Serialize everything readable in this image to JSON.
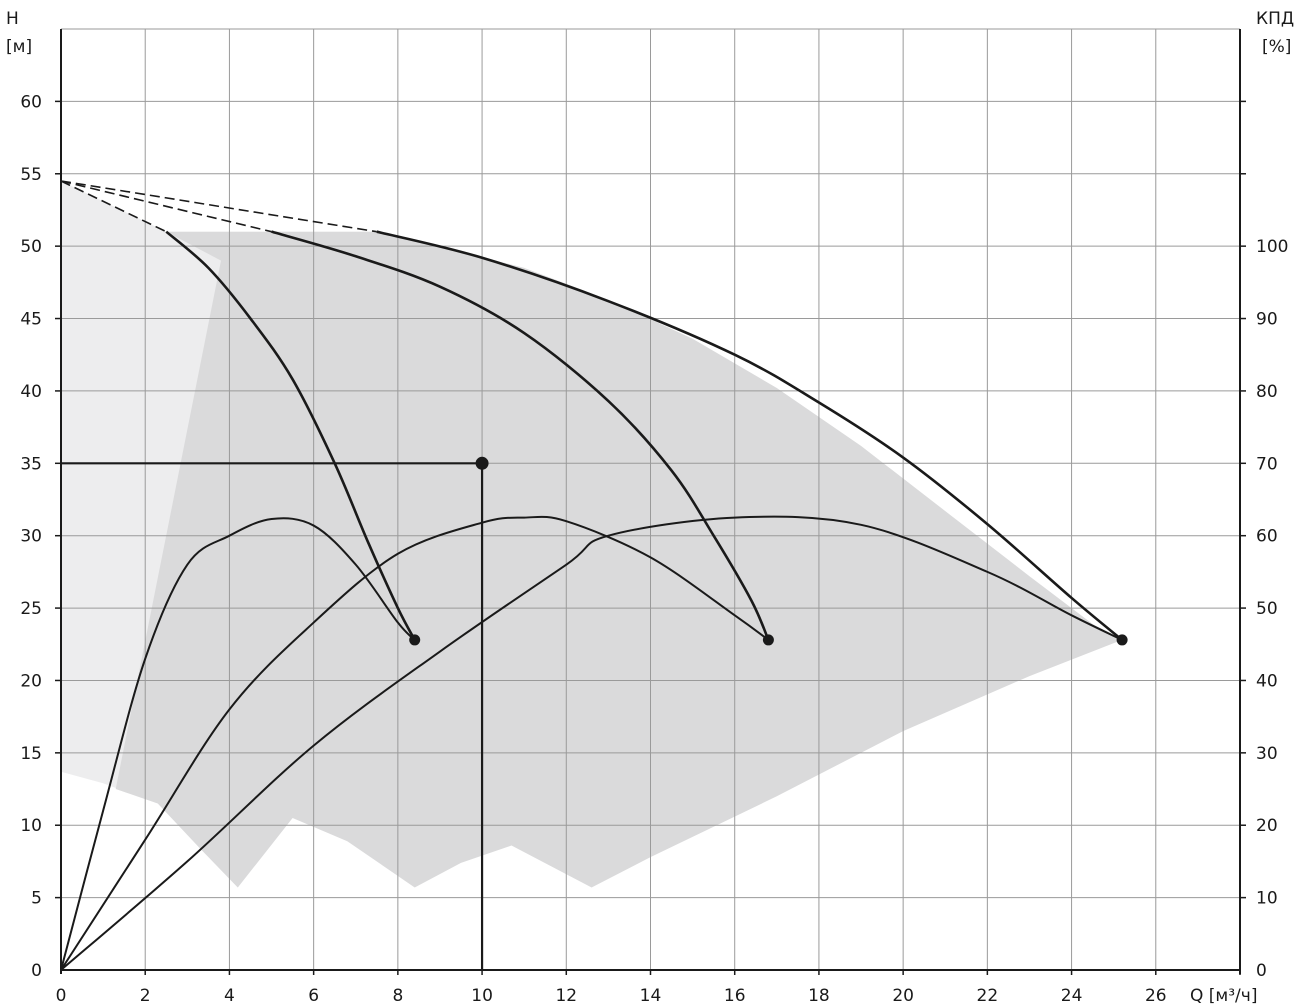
{
  "chart_data": {
    "type": "line",
    "title": "",
    "left_axis": {
      "title_line1": "H",
      "title_line2": "[м]"
    },
    "right_axis": {
      "title_line1": "КПД",
      "title_line2": "[%]"
    },
    "x_axis": {
      "title": "Q [м³/ч]"
    },
    "xlim": [
      0,
      28
    ],
    "ylim_head": [
      0,
      65
    ],
    "ylim_eff": [
      0,
      130
    ],
    "x_ticks": [
      "0",
      "2",
      "4",
      "6",
      "8",
      "10",
      "12",
      "14",
      "16",
      "18",
      "20",
      "22",
      "24",
      "26"
    ],
    "y_ticks_left": [
      "0",
      "5",
      "10",
      "15",
      "20",
      "25",
      "30",
      "35",
      "40",
      "45",
      "50",
      "55",
      "60"
    ],
    "y_ticks_right": [
      "0",
      "10",
      "20",
      "30",
      "40",
      "50",
      "60",
      "70",
      "80",
      "90",
      "100"
    ],
    "grid": true,
    "colors": {
      "region_light": "#ededee",
      "region_dark": "#dadadb",
      "curve": "#1a1a1a",
      "grid": "#9a9a9a"
    },
    "regions": {
      "light_envelope": [
        [
          0,
          54.5
        ],
        [
          2.5,
          51
        ],
        [
          5,
          51
        ],
        [
          7.5,
          51
        ],
        [
          7.5,
          51
        ],
        [
          6,
          37
        ],
        [
          5.3,
          30.2
        ],
        [
          4.7,
          25.6
        ],
        [
          4.3,
          22.9
        ],
        [
          4.2,
          5.7
        ],
        [
          3.3,
          8.4
        ],
        [
          2.3,
          11.5
        ],
        [
          1,
          12.9
        ],
        [
          0,
          13.7
        ]
      ],
      "operating_area": [
        [
          2.5,
          51
        ],
        [
          5,
          51
        ],
        [
          7.5,
          51
        ],
        [
          9,
          50
        ],
        [
          11,
          48.5
        ],
        [
          13,
          46.3
        ],
        [
          15,
          43.6
        ],
        [
          17,
          40.2
        ],
        [
          19,
          36.2
        ],
        [
          21,
          31.7
        ],
        [
          23,
          27.2
        ],
        [
          24.5,
          23.9
        ],
        [
          25.2,
          22.8
        ],
        [
          23,
          20.3
        ],
        [
          20,
          16.5
        ],
        [
          17,
          12
        ],
        [
          14,
          7.8
        ],
        [
          12.6,
          5.7
        ],
        [
          10.7,
          8.6
        ],
        [
          9.5,
          7.4
        ],
        [
          8.4,
          5.7
        ],
        [
          6.8,
          8.9
        ],
        [
          5.5,
          10.5
        ],
        [
          4.2,
          5.7
        ],
        [
          3.3,
          8.4
        ],
        [
          2.3,
          11.5
        ],
        [
          1.3,
          12.5
        ],
        [
          3.8,
          49
        ]
      ]
    },
    "head_curves": [
      {
        "dashed_from": [
          0,
          54.5
        ],
        "points": [
          [
            2.5,
            51
          ],
          [
            3.5,
            48.5
          ],
          [
            4.5,
            45
          ],
          [
            5.5,
            40.8
          ],
          [
            6.5,
            35
          ],
          [
            7.3,
            29.5
          ],
          [
            8,
            25
          ],
          [
            8.4,
            22.8
          ]
        ]
      },
      {
        "dashed_from": [
          0,
          54.5
        ],
        "points": [
          [
            5,
            51
          ],
          [
            7,
            49.3
          ],
          [
            9,
            47.2
          ],
          [
            11,
            44
          ],
          [
            13,
            39.3
          ],
          [
            14.5,
            34.5
          ],
          [
            15.5,
            30
          ],
          [
            16.4,
            25.5
          ],
          [
            16.8,
            22.8
          ]
        ]
      },
      {
        "dashed_from": [
          0,
          54.5
        ],
        "points": [
          [
            7.5,
            51
          ],
          [
            10,
            49.2
          ],
          [
            13,
            46.2
          ],
          [
            16,
            42.5
          ],
          [
            18,
            39.2
          ],
          [
            20,
            35.4
          ],
          [
            22,
            30.8
          ],
          [
            24,
            25.7
          ],
          [
            25.2,
            22.8
          ]
        ]
      }
    ],
    "efficiency_curves": [
      {
        "points": [
          [
            0,
            0
          ],
          [
            1,
            22
          ],
          [
            2,
            43
          ],
          [
            3,
            56
          ],
          [
            4,
            60
          ],
          [
            5,
            62.3
          ],
          [
            6,
            61.4
          ],
          [
            7,
            56
          ],
          [
            8,
            48
          ],
          [
            8.4,
            45.6
          ]
        ]
      },
      {
        "points": [
          [
            0,
            0
          ],
          [
            2,
            18
          ],
          [
            4,
            36
          ],
          [
            6,
            48
          ],
          [
            8,
            57.5
          ],
          [
            10,
            61.8
          ],
          [
            11,
            62.5
          ],
          [
            12,
            62
          ],
          [
            14,
            57
          ],
          [
            16,
            49
          ],
          [
            16.8,
            45.6
          ]
        ]
      },
      {
        "points": [
          [
            0,
            0
          ],
          [
            3,
            15
          ],
          [
            6,
            31
          ],
          [
            9,
            44
          ],
          [
            12,
            56
          ],
          [
            13,
            60
          ],
          [
            16,
            62.5
          ],
          [
            19,
            61.5
          ],
          [
            22,
            55
          ],
          [
            24,
            49
          ],
          [
            25.2,
            45.6
          ]
        ]
      }
    ],
    "end_markers": [
      [
        8.4,
        22.8
      ],
      [
        16.8,
        22.8
      ],
      [
        25.2,
        22.8
      ]
    ],
    "duty_point": {
      "x": 10,
      "y": 35
    }
  }
}
